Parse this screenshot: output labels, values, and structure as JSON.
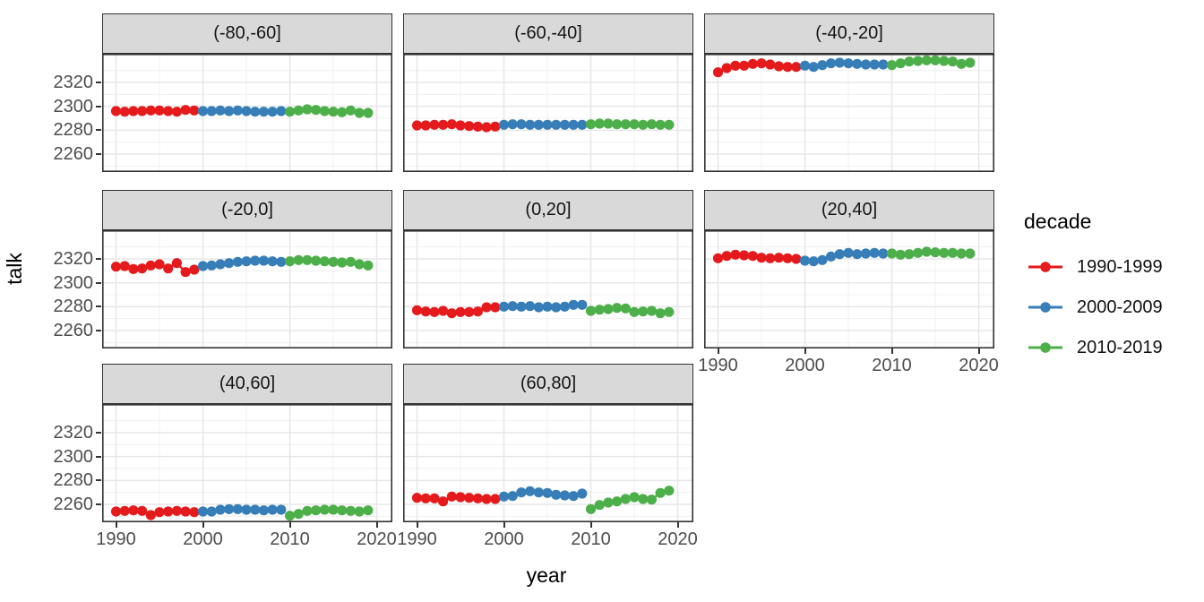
{
  "chart_data": {
    "type": "line",
    "title": "",
    "xlabel": "year",
    "ylabel": "talk",
    "x": [
      1990,
      1991,
      1992,
      1993,
      1994,
      1995,
      1996,
      1997,
      1998,
      1999,
      2000,
      2001,
      2002,
      2003,
      2004,
      2005,
      2006,
      2007,
      2008,
      2009,
      2010,
      2011,
      2012,
      2013,
      2014,
      2015,
      2016,
      2017,
      2018,
      2019
    ],
    "xlim": [
      1988.4,
      2021.8
    ],
    "ylim": [
      2245,
      2344
    ],
    "x_ticks": [
      1990,
      2000,
      2010,
      2020
    ],
    "y_ticks": [
      2260,
      2280,
      2300,
      2320
    ],
    "x_minor_ticks": [
      1995,
      2005,
      2015
    ],
    "y_minor_ticks": [
      2250,
      2270,
      2290,
      2310,
      2330
    ],
    "grid": "major-and-minor",
    "panel_background": "#ffffff",
    "grid_color_major": "#e7e7e7",
    "grid_color_minor": "#f0f0f0",
    "border_color": "#333333",
    "legend": {
      "title": "decade",
      "position": "right",
      "items": [
        {
          "label": "1990-1999",
          "color": "#e41a1c"
        },
        {
          "label": "2000-2009",
          "color": "#377eb8"
        },
        {
          "label": "2010-2019",
          "color": "#4daf4a"
        }
      ]
    },
    "facet_grid": {
      "rows": 3,
      "cols": 3,
      "empty_cells": [
        [
          2,
          2
        ]
      ]
    },
    "facets": [
      {
        "label": "(-80,-60]",
        "grid_pos": [
          0,
          0
        ],
        "x_axis": false,
        "series": [
          {
            "name": "1990-1999",
            "values": [
              2296,
              2295.5,
              2296,
              2296,
              2296.5,
              2296.5,
              2296,
              2295.5,
              2297,
              2296.5
            ]
          },
          {
            "name": "2000-2009",
            "values": [
              2296,
              2296,
              2296.5,
              2296,
              2296.5,
              2296,
              2295.5,
              2295.5,
              2295.5,
              2296
            ]
          },
          {
            "name": "2010-2019",
            "values": [
              2295.5,
              2296.5,
              2297.5,
              2297,
              2296,
              2295.5,
              2295,
              2296.5,
              2294.5,
              2294.5
            ]
          }
        ]
      },
      {
        "label": "(-60,-40]",
        "grid_pos": [
          0,
          1
        ],
        "x_axis": false,
        "series": [
          {
            "name": "1990-1999",
            "values": [
              2284,
              2284,
              2284.5,
              2284.5,
              2285,
              2284,
              2283.5,
              2283,
              2282.5,
              2283
            ]
          },
          {
            "name": "2000-2009",
            "values": [
              2284.5,
              2285,
              2285,
              2284.5,
              2284.5,
              2284.5,
              2284.5,
              2284.5,
              2284.5,
              2284.5
            ]
          },
          {
            "name": "2010-2019",
            "values": [
              2285,
              2285.5,
              2285.5,
              2285,
              2285,
              2285,
              2284.5,
              2285,
              2284.5,
              2284.5
            ]
          }
        ]
      },
      {
        "label": "(-40,-20]",
        "grid_pos": [
          0,
          2
        ],
        "x_axis": false,
        "series": [
          {
            "name": "1990-1999",
            "values": [
              2328.5,
              2332,
              2334,
              2334,
              2335.5,
              2336,
              2335,
              2333.5,
              2333,
              2333
            ]
          },
          {
            "name": "2000-2009",
            "values": [
              2334,
              2333,
              2334.5,
              2336,
              2336.5,
              2336,
              2335.5,
              2335,
              2335,
              2335
            ]
          },
          {
            "name": "2010-2019",
            "values": [
              2334.5,
              2336,
              2337.5,
              2338,
              2338.5,
              2338.5,
              2338,
              2337.5,
              2335.5,
              2336.5
            ]
          }
        ]
      },
      {
        "label": "(-20,0]",
        "grid_pos": [
          1,
          0
        ],
        "x_axis": false,
        "series": [
          {
            "name": "1990-1999",
            "values": [
              2313.5,
              2314,
              2311.5,
              2312,
              2314.5,
              2315.5,
              2312,
              2316.5,
              2309,
              2311
            ]
          },
          {
            "name": "2000-2009",
            "values": [
              2314,
              2314.5,
              2315.5,
              2316.5,
              2317.5,
              2318,
              2318.5,
              2318.5,
              2318,
              2317.5
            ]
          },
          {
            "name": "2010-2019",
            "values": [
              2318,
              2319,
              2319,
              2318.5,
              2318,
              2317.5,
              2317,
              2317.5,
              2315.5,
              2314.5
            ]
          }
        ]
      },
      {
        "label": "(0,20]",
        "grid_pos": [
          1,
          1
        ],
        "x_axis": false,
        "series": [
          {
            "name": "1990-1999",
            "values": [
              2277,
              2276,
              2275.5,
              2276.5,
              2274.5,
              2275.5,
              2275.5,
              2276,
              2279.5,
              2279.5
            ]
          },
          {
            "name": "2000-2009",
            "values": [
              2280,
              2280.5,
              2280,
              2280.5,
              2279.5,
              2280,
              2279.5,
              2280,
              2281.5,
              2281.5
            ]
          },
          {
            "name": "2010-2019",
            "values": [
              2276.5,
              2277.5,
              2278,
              2279,
              2278.5,
              2275.5,
              2276,
              2276.5,
              2274.5,
              2275.5
            ]
          }
        ]
      },
      {
        "label": "(20,40]",
        "grid_pos": [
          1,
          2
        ],
        "x_axis": true,
        "series": [
          {
            "name": "1990-1999",
            "values": [
              2320.5,
              2322.5,
              2323.5,
              2323,
              2322.5,
              2321,
              2320.5,
              2321,
              2320.5,
              2320
            ]
          },
          {
            "name": "2000-2009",
            "values": [
              2318.5,
              2318,
              2319,
              2322,
              2324,
              2325,
              2324,
              2324.5,
              2325,
              2324.5
            ]
          },
          {
            "name": "2010-2019",
            "values": [
              2324.5,
              2323.5,
              2324,
              2325,
              2326,
              2325.5,
              2325,
              2325,
              2324.5,
              2324.5
            ]
          }
        ]
      },
      {
        "label": "(40,60]",
        "grid_pos": [
          2,
          0
        ],
        "x_axis": true,
        "series": [
          {
            "name": "1990-1999",
            "values": [
              2254,
              2254.5,
              2255,
              2254.5,
              2251,
              2253.5,
              2254,
              2254.5,
              2254,
              2253.5
            ]
          },
          {
            "name": "2000-2009",
            "values": [
              2254,
              2254,
              2255.5,
              2256,
              2256,
              2255.5,
              2255.5,
              2255,
              2255.5,
              2255.5
            ]
          },
          {
            "name": "2010-2019",
            "values": [
              2250.5,
              2252,
              2254.5,
              2255,
              2255.5,
              2255.5,
              2255,
              2254.5,
              2254,
              2255
            ]
          }
        ]
      },
      {
        "label": "(60,80]",
        "grid_pos": [
          2,
          1
        ],
        "x_axis": true,
        "series": [
          {
            "name": "1990-1999",
            "values": [
              2265.5,
              2265,
              2265,
              2262.5,
              2266.5,
              2266,
              2265.5,
              2265,
              2264.5,
              2264.5
            ]
          },
          {
            "name": "2000-2009",
            "values": [
              2266.5,
              2267,
              2270,
              2271,
              2270,
              2269.5,
              2268,
              2267.5,
              2267,
              2269
            ]
          },
          {
            "name": "2010-2019",
            "values": [
              2256,
              2259.5,
              2261.5,
              2262.5,
              2264.5,
              2266,
              2264.5,
              2264,
              2269.5,
              2271.5
            ]
          }
        ]
      }
    ]
  }
}
